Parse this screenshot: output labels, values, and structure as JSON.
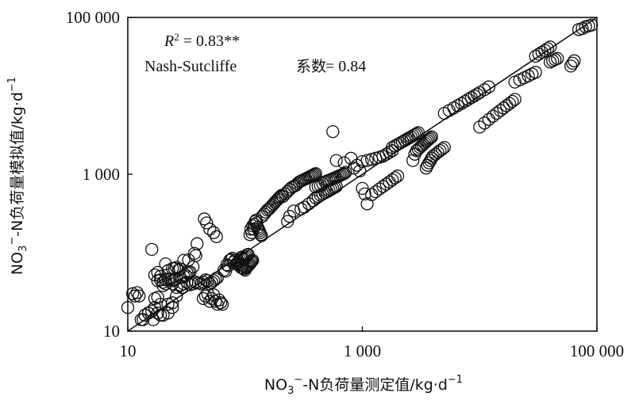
{
  "chart_data": {
    "type": "scatter",
    "x_scale": "log",
    "y_scale": "log",
    "xlim": [
      10,
      100000
    ],
    "ylim": [
      10,
      100000
    ],
    "x_ticks": [
      {
        "value": 10,
        "label": "10"
      },
      {
        "value": 1000,
        "label": "1 000"
      },
      {
        "value": 100000,
        "label": "100 000"
      }
    ],
    "y_ticks": [
      {
        "value": 10,
        "label": "10"
      },
      {
        "value": 1000,
        "label": "1 000"
      },
      {
        "value": 100000,
        "label": "100 000"
      }
    ],
    "xlabel": {
      "main": "NO",
      "sub": "3",
      "sup": "−",
      "rest": "-N负荷量测定值/kg·d",
      "exp": "−1"
    },
    "ylabel": {
      "main": "NO",
      "sub": "3",
      "sup": "−",
      "rest": "-N负荷量模拟值/kg·d",
      "exp": "−1"
    },
    "annotations": {
      "r2_symbol": "R",
      "r2_exp": "2",
      "r2_value": " = 0.83**",
      "nse_name": "Nash-Sutcliffe",
      "nse_cjk": "系数",
      "nse_value": " = 0.84"
    },
    "reference_line": {
      "type": "1:1",
      "from": [
        10,
        10
      ],
      "to": [
        100000,
        100000
      ]
    },
    "grid": false,
    "legend": "none",
    "marker": "open-circle",
    "points": [
      [
        10,
        20
      ],
      [
        11,
        30
      ],
      [
        11.5,
        28
      ],
      [
        12,
        31
      ],
      [
        12.5,
        28
      ],
      [
        13,
        14
      ],
      [
        13.5,
        14
      ],
      [
        14,
        16
      ],
      [
        15,
        17
      ],
      [
        17,
        20
      ],
      [
        18,
        17
      ],
      [
        19,
        16
      ],
      [
        20,
        16
      ],
      [
        22,
        17
      ],
      [
        24,
        20
      ],
      [
        15,
        17
      ],
      [
        16,
        18
      ],
      [
        16.5,
        14
      ],
      [
        17,
        26
      ],
      [
        18,
        27
      ],
      [
        19,
        22
      ],
      [
        20,
        38
      ],
      [
        21,
        40
      ],
      [
        22,
        22
      ],
      [
        24,
        23
      ],
      [
        26,
        28
      ],
      [
        16,
        110
      ],
      [
        17,
        52
      ],
      [
        18,
        56
      ],
      [
        19,
        50
      ],
      [
        21,
        72
      ],
      [
        22,
        59
      ],
      [
        24,
        63
      ],
      [
        25,
        63
      ],
      [
        26,
        65
      ],
      [
        27,
        60
      ],
      [
        28,
        62
      ],
      [
        30,
        80
      ],
      [
        33,
        81
      ],
      [
        36,
        66
      ],
      [
        37,
        98
      ],
      [
        38,
        92
      ],
      [
        39,
        130
      ],
      [
        45,
        270
      ],
      [
        47,
        240
      ],
      [
        50,
        200
      ],
      [
        54,
        180
      ],
      [
        57,
        160
      ],
      [
        18,
        44
      ],
      [
        19,
        45
      ],
      [
        20,
        42
      ],
      [
        21,
        45
      ],
      [
        22,
        46
      ],
      [
        23,
        46
      ],
      [
        24,
        44
      ],
      [
        25,
        45
      ],
      [
        26,
        47
      ],
      [
        28,
        48
      ],
      [
        30,
        50
      ],
      [
        31,
        52
      ],
      [
        32,
        55
      ],
      [
        33,
        56
      ],
      [
        34,
        57
      ],
      [
        24,
        40
      ],
      [
        26,
        36
      ],
      [
        28,
        38
      ],
      [
        29,
        36
      ],
      [
        30,
        40
      ],
      [
        32,
        42
      ],
      [
        34,
        39
      ],
      [
        36,
        40
      ],
      [
        38,
        42
      ],
      [
        40,
        41
      ],
      [
        42,
        40
      ],
      [
        44,
        42
      ],
      [
        46,
        45
      ],
      [
        48,
        44
      ],
      [
        50,
        40
      ],
      [
        52,
        42
      ],
      [
        54,
        44
      ],
      [
        56,
        46
      ],
      [
        58,
        48
      ],
      [
        44,
        26
      ],
      [
        46,
        28
      ],
      [
        48,
        30
      ],
      [
        50,
        24
      ],
      [
        52,
        26
      ],
      [
        54,
        29
      ],
      [
        56,
        24
      ],
      [
        58,
        22
      ],
      [
        60,
        25
      ],
      [
        62,
        23
      ],
      [
        64,
        22
      ],
      [
        66,
        60
      ],
      [
        68,
        58
      ],
      [
        70,
        70
      ],
      [
        72,
        68
      ],
      [
        74,
        80
      ],
      [
        76,
        82
      ],
      [
        78,
        85
      ],
      [
        80,
        76
      ],
      [
        82,
        80
      ],
      [
        84,
        72
      ],
      [
        86,
        74
      ],
      [
        88,
        78
      ],
      [
        90,
        82
      ],
      [
        92,
        86
      ],
      [
        94,
        88
      ],
      [
        96,
        84
      ],
      [
        98,
        82
      ],
      [
        100,
        86
      ],
      [
        102,
        90
      ],
      [
        104,
        94
      ],
      [
        106,
        95
      ],
      [
        90,
        70
      ],
      [
        92,
        65
      ],
      [
        94,
        64
      ],
      [
        96,
        68
      ],
      [
        98,
        62
      ],
      [
        100,
        60
      ],
      [
        102,
        64
      ],
      [
        104,
        66
      ],
      [
        106,
        68
      ],
      [
        108,
        70
      ],
      [
        110,
        72
      ],
      [
        112,
        76
      ],
      [
        114,
        78
      ],
      [
        116,
        80
      ],
      [
        110,
        170
      ],
      [
        112,
        200
      ],
      [
        114,
        180
      ],
      [
        116,
        220
      ],
      [
        118,
        200
      ],
      [
        120,
        230
      ],
      [
        122,
        250
      ],
      [
        124,
        260
      ],
      [
        126,
        240
      ],
      [
        128,
        210
      ],
      [
        130,
        200
      ],
      [
        132,
        190
      ],
      [
        134,
        180
      ],
      [
        136,
        170
      ],
      [
        138,
        165
      ],
      [
        140,
        290
      ],
      [
        145,
        310
      ],
      [
        150,
        330
      ],
      [
        155,
        350
      ],
      [
        160,
        360
      ],
      [
        165,
        380
      ],
      [
        170,
        400
      ],
      [
        175,
        420
      ],
      [
        180,
        440
      ],
      [
        185,
        460
      ],
      [
        190,
        480
      ],
      [
        195,
        500
      ],
      [
        200,
        520
      ],
      [
        205,
        540
      ],
      [
        210,
        520
      ],
      [
        220,
        560
      ],
      [
        230,
        600
      ],
      [
        240,
        640
      ],
      [
        250,
        680
      ],
      [
        260,
        700
      ],
      [
        270,
        720
      ],
      [
        280,
        760
      ],
      [
        290,
        800
      ],
      [
        300,
        820
      ],
      [
        310,
        840
      ],
      [
        320,
        860
      ],
      [
        330,
        880
      ],
      [
        340,
        900
      ],
      [
        350,
        920
      ],
      [
        360,
        940
      ],
      [
        370,
        960
      ],
      [
        380,
        980
      ],
      [
        390,
        1000
      ],
      [
        400,
        1020
      ],
      [
        230,
        250
      ],
      [
        240,
        290
      ],
      [
        260,
        340
      ],
      [
        300,
        360
      ],
      [
        320,
        380
      ],
      [
        350,
        420
      ],
      [
        380,
        460
      ],
      [
        400,
        500
      ],
      [
        420,
        520
      ],
      [
        440,
        540
      ],
      [
        460,
        560
      ],
      [
        480,
        580
      ],
      [
        500,
        600
      ],
      [
        520,
        620
      ],
      [
        540,
        640
      ],
      [
        560,
        660
      ],
      [
        580,
        680
      ],
      [
        600,
        700
      ],
      [
        400,
        690
      ],
      [
        420,
        700
      ],
      [
        440,
        720
      ],
      [
        460,
        760
      ],
      [
        480,
        800
      ],
      [
        500,
        820
      ],
      [
        520,
        840
      ],
      [
        540,
        860
      ],
      [
        560,
        880
      ],
      [
        580,
        900
      ],
      [
        600,
        920
      ],
      [
        620,
        940
      ],
      [
        640,
        960
      ],
      [
        660,
        980
      ],
      [
        680,
        1000
      ],
      [
        700,
        1020
      ],
      [
        720,
        1060
      ],
      [
        560,
        3500
      ],
      [
        600,
        1500
      ],
      [
        700,
        1400
      ],
      [
        800,
        1600
      ],
      [
        850,
        1200
      ],
      [
        900,
        1300
      ],
      [
        950,
        1100
      ],
      [
        1000,
        1450
      ],
      [
        1100,
        1500
      ],
      [
        1200,
        1550
      ],
      [
        1300,
        1600
      ],
      [
        1400,
        1650
      ],
      [
        1500,
        1700
      ],
      [
        1600,
        1800
      ],
      [
        1700,
        1900
      ],
      [
        1800,
        2000
      ],
      [
        1000,
        660
      ],
      [
        1050,
        560
      ],
      [
        1100,
        420
      ],
      [
        1200,
        550
      ],
      [
        1300,
        600
      ],
      [
        1400,
        650
      ],
      [
        1500,
        700
      ],
      [
        1600,
        750
      ],
      [
        1700,
        800
      ],
      [
        1800,
        850
      ],
      [
        1900,
        900
      ],
      [
        2000,
        950
      ],
      [
        1800,
        2200
      ],
      [
        1900,
        2300
      ],
      [
        2000,
        2400
      ],
      [
        2100,
        2500
      ],
      [
        2200,
        2600
      ],
      [
        2300,
        2700
      ],
      [
        2400,
        2800
      ],
      [
        2500,
        2900
      ],
      [
        2600,
        3000
      ],
      [
        2700,
        3100
      ],
      [
        2800,
        3200
      ],
      [
        2900,
        3300
      ],
      [
        3000,
        3400
      ],
      [
        2700,
        1500
      ],
      [
        2800,
        1800
      ],
      [
        2900,
        2000
      ],
      [
        3000,
        2100
      ],
      [
        3100,
        2200
      ],
      [
        3200,
        2300
      ],
      [
        3300,
        2400
      ],
      [
        3400,
        2500
      ],
      [
        3500,
        2600
      ],
      [
        3600,
        2700
      ],
      [
        3700,
        2800
      ],
      [
        3800,
        2900
      ],
      [
        3900,
        3000
      ],
      [
        3500,
        1200
      ],
      [
        3600,
        1300
      ],
      [
        3700,
        1400
      ],
      [
        3800,
        1500
      ],
      [
        3900,
        1600
      ],
      [
        4000,
        1700
      ],
      [
        4200,
        1800
      ],
      [
        4400,
        1900
      ],
      [
        4600,
        2000
      ],
      [
        4800,
        2100
      ],
      [
        5000,
        2200
      ],
      [
        5000,
        6000
      ],
      [
        5500,
        6500
      ],
      [
        6000,
        7000
      ],
      [
        6500,
        7500
      ],
      [
        7000,
        8000
      ],
      [
        7500,
        8500
      ],
      [
        8000,
        9000
      ],
      [
        8500,
        9500
      ],
      [
        9000,
        10000
      ],
      [
        9500,
        10500
      ],
      [
        10000,
        11000
      ],
      [
        11000,
        12000
      ],
      [
        12000,
        13000
      ],
      [
        10000,
        4000
      ],
      [
        11000,
        4500
      ],
      [
        12000,
        5000
      ],
      [
        13000,
        5500
      ],
      [
        14000,
        6000
      ],
      [
        15000,
        6500
      ],
      [
        16000,
        7000
      ],
      [
        17000,
        7500
      ],
      [
        18000,
        8000
      ],
      [
        19000,
        8500
      ],
      [
        20000,
        9000
      ],
      [
        20000,
        15000
      ],
      [
        22000,
        16000
      ],
      [
        24000,
        17000
      ],
      [
        26000,
        18000
      ],
      [
        28000,
        19000
      ],
      [
        30000,
        20000
      ],
      [
        30000,
        32000
      ],
      [
        32000,
        34000
      ],
      [
        34000,
        36000
      ],
      [
        36000,
        38000
      ],
      [
        38000,
        40000
      ],
      [
        40000,
        42000
      ],
      [
        40000,
        27000
      ],
      [
        42000,
        28000
      ],
      [
        44000,
        29000
      ],
      [
        46000,
        30000
      ],
      [
        60000,
        24000
      ],
      [
        62000,
        26000
      ],
      [
        64000,
        28000
      ],
      [
        70000,
        70000
      ],
      [
        75000,
        72000
      ],
      [
        80000,
        76000
      ],
      [
        85000,
        78000
      ],
      [
        90000,
        80000
      ]
    ]
  }
}
